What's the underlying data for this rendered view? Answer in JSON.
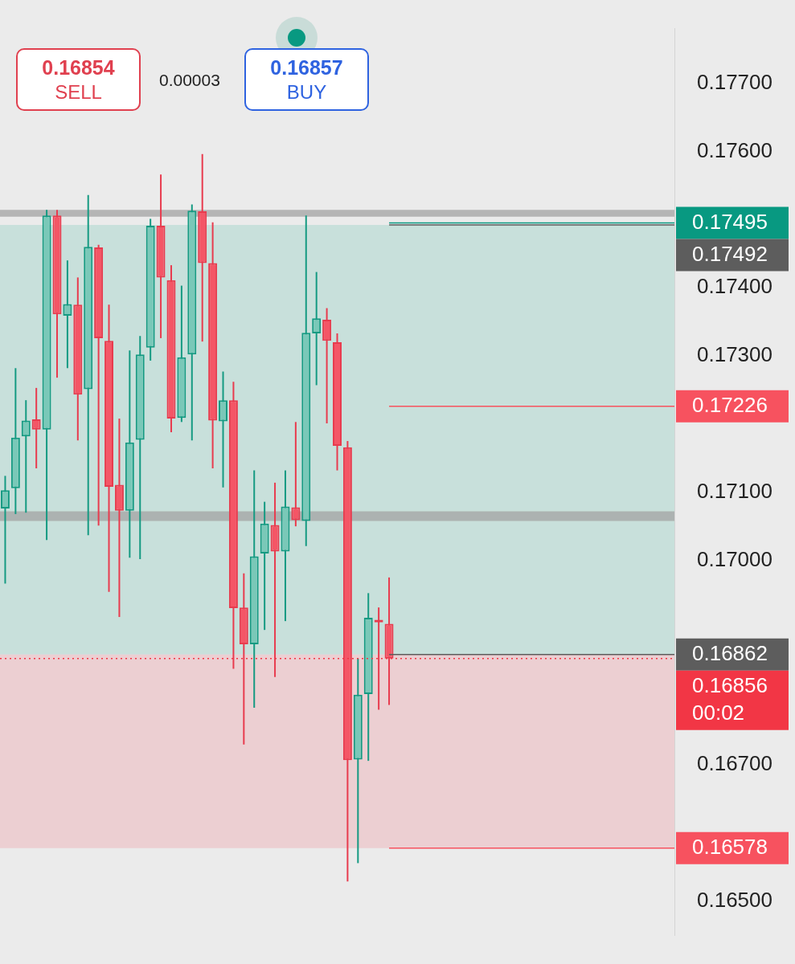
{
  "chart_data": {
    "type": "candlestick",
    "categories": [
      null,
      null,
      null,
      null,
      null,
      null,
      null,
      null,
      null,
      null,
      null,
      null,
      null,
      null,
      null,
      null,
      null,
      null,
      null,
      null,
      null,
      null,
      null,
      null,
      null,
      null,
      null,
      null,
      null,
      null,
      null,
      null,
      null,
      null,
      null,
      null,
      null,
      null,
      null,
      null,
      null,
      null,
      null,
      null,
      null,
      null,
      null,
      null,
      null,
      null,
      null,
      null,
      null,
      null,
      null,
      null,
      null,
      null,
      null,
      null,
      null,
      null,
      null,
      null,
      null
    ],
    "ohlc": [
      [
        0.17076,
        0.17124,
        0.16966,
        0.17103
      ],
      [
        0.17106,
        0.17282,
        0.17068,
        0.1718
      ],
      [
        0.17182,
        0.17235,
        0.1707,
        0.17205
      ],
      [
        0.17207,
        0.17253,
        0.17135,
        0.17192
      ],
      [
        0.17192,
        0.17514,
        0.1703,
        0.17506
      ],
      [
        0.17506,
        0.17514,
        0.17268,
        0.17361
      ],
      [
        0.17359,
        0.1744,
        0.17282,
        0.17376
      ],
      [
        0.17375,
        0.17415,
        0.17176,
        0.17243
      ],
      [
        0.17251,
        0.17536,
        0.17037,
        0.1746
      ],
      [
        0.17459,
        0.17463,
        0.17051,
        0.17326
      ],
      [
        0.17322,
        0.17375,
        0.16954,
        0.17108
      ],
      [
        0.17111,
        0.17208,
        0.16917,
        0.17073
      ],
      [
        0.17073,
        0.17308,
        0.17004,
        0.17173
      ],
      [
        0.17177,
        0.17329,
        0.17002,
        0.17302
      ],
      [
        0.17312,
        0.17501,
        0.17293,
        0.17491
      ],
      [
        0.17491,
        0.17566,
        0.17326,
        0.17415
      ],
      [
        0.17411,
        0.17433,
        0.17188,
        0.17208
      ],
      [
        0.17209,
        0.17403,
        0.17203,
        0.17298
      ],
      [
        0.17302,
        0.17522,
        0.17176,
        0.17513
      ],
      [
        0.17512,
        0.17596,
        0.17321,
        0.17436
      ],
      [
        0.17436,
        0.17496,
        0.17135,
        0.17205
      ],
      [
        0.17204,
        0.17277,
        0.17107,
        0.17235
      ],
      [
        0.17235,
        0.17262,
        0.16841,
        0.1693
      ],
      [
        0.16931,
        0.16981,
        0.1673,
        0.16877
      ],
      [
        0.16877,
        0.17132,
        0.16784,
        0.17006
      ],
      [
        0.1701,
        0.17086,
        0.16898,
        0.17054
      ],
      [
        0.17052,
        0.17114,
        0.16829,
        0.17013
      ],
      [
        0.17013,
        0.17132,
        0.16911,
        0.17079
      ],
      [
        0.17078,
        0.17203,
        0.1705,
        0.17059
      ],
      [
        0.17058,
        0.17506,
        0.17021,
        0.17334
      ],
      [
        0.17333,
        0.17423,
        0.17257,
        0.17355
      ],
      [
        0.17353,
        0.1737,
        0.17201,
        0.17322
      ],
      [
        0.1732,
        0.17333,
        0.17132,
        0.17168
      ],
      [
        0.17166,
        0.17175,
        0.16529,
        0.16707
      ],
      [
        0.16708,
        0.16856,
        0.16556,
        0.16803
      ],
      [
        0.16804,
        0.16952,
        0.16706,
        0.16916
      ],
      [
        0.16913,
        0.16931,
        0.16781,
        0.16909
      ],
      [
        0.16907,
        0.16975,
        0.16788,
        0.16856
      ],
      null,
      null,
      null,
      null,
      null,
      null,
      null,
      null,
      null,
      null,
      null,
      null,
      null,
      null,
      null,
      null,
      null,
      null,
      null,
      null,
      null,
      null,
      null,
      null,
      null,
      null,
      null
    ],
    "ylim": [
      0.1645,
      0.1778
    ],
    "yticks": [
      {
        "value": 0.165,
        "label": "0.16500"
      },
      {
        "value": 0.167,
        "label": "0.16700"
      },
      {
        "value": 0.17,
        "label": "0.17000"
      },
      {
        "value": 0.171,
        "label": "0.17100"
      },
      {
        "value": 0.173,
        "label": "0.17300"
      },
      {
        "value": 0.174,
        "label": "0.17400"
      },
      {
        "value": 0.176,
        "label": "0.17600"
      },
      {
        "value": 0.177,
        "label": "0.17700"
      }
    ],
    "tick_labels": "y",
    "bands": [
      {
        "axis": "y",
        "from": 0.16862,
        "to": 0.17492,
        "color": "#bcdcd6"
      },
      {
        "axis": "y",
        "from": 0.16578,
        "to": 0.16862,
        "color": "#ecc6ca"
      },
      {
        "axis": "y",
        "from": 0.17504,
        "to": 0.17514,
        "color": "#a3a3a3"
      },
      {
        "axis": "y",
        "from": 0.17058,
        "to": 0.17072,
        "color": "#a3a3a3"
      }
    ],
    "ref_lines": [
      {
        "axis": "y",
        "value": 0.17495,
        "label": "0.17495",
        "color": "#089981"
      },
      {
        "axis": "y",
        "value": 0.17492,
        "label": "0.17492",
        "color": "#5d5d5d"
      },
      {
        "axis": "y",
        "value": 0.17226,
        "label": "0.17226",
        "color": "#f7525f"
      },
      {
        "axis": "y",
        "value": 0.16862,
        "label": "0.16862",
        "color": "#5d5d5d"
      },
      {
        "axis": "y",
        "value": 0.16856,
        "label": "0.16856\n00:02",
        "color": "#f23645",
        "line_style": "dotted"
      },
      {
        "axis": "y",
        "value": 0.16578,
        "label": "0.16578",
        "color": "#f7525f"
      }
    ],
    "annotations": [
      "0.16854",
      "SELL",
      "0.00003",
      "0.16857",
      "BUY"
    ]
  }
}
